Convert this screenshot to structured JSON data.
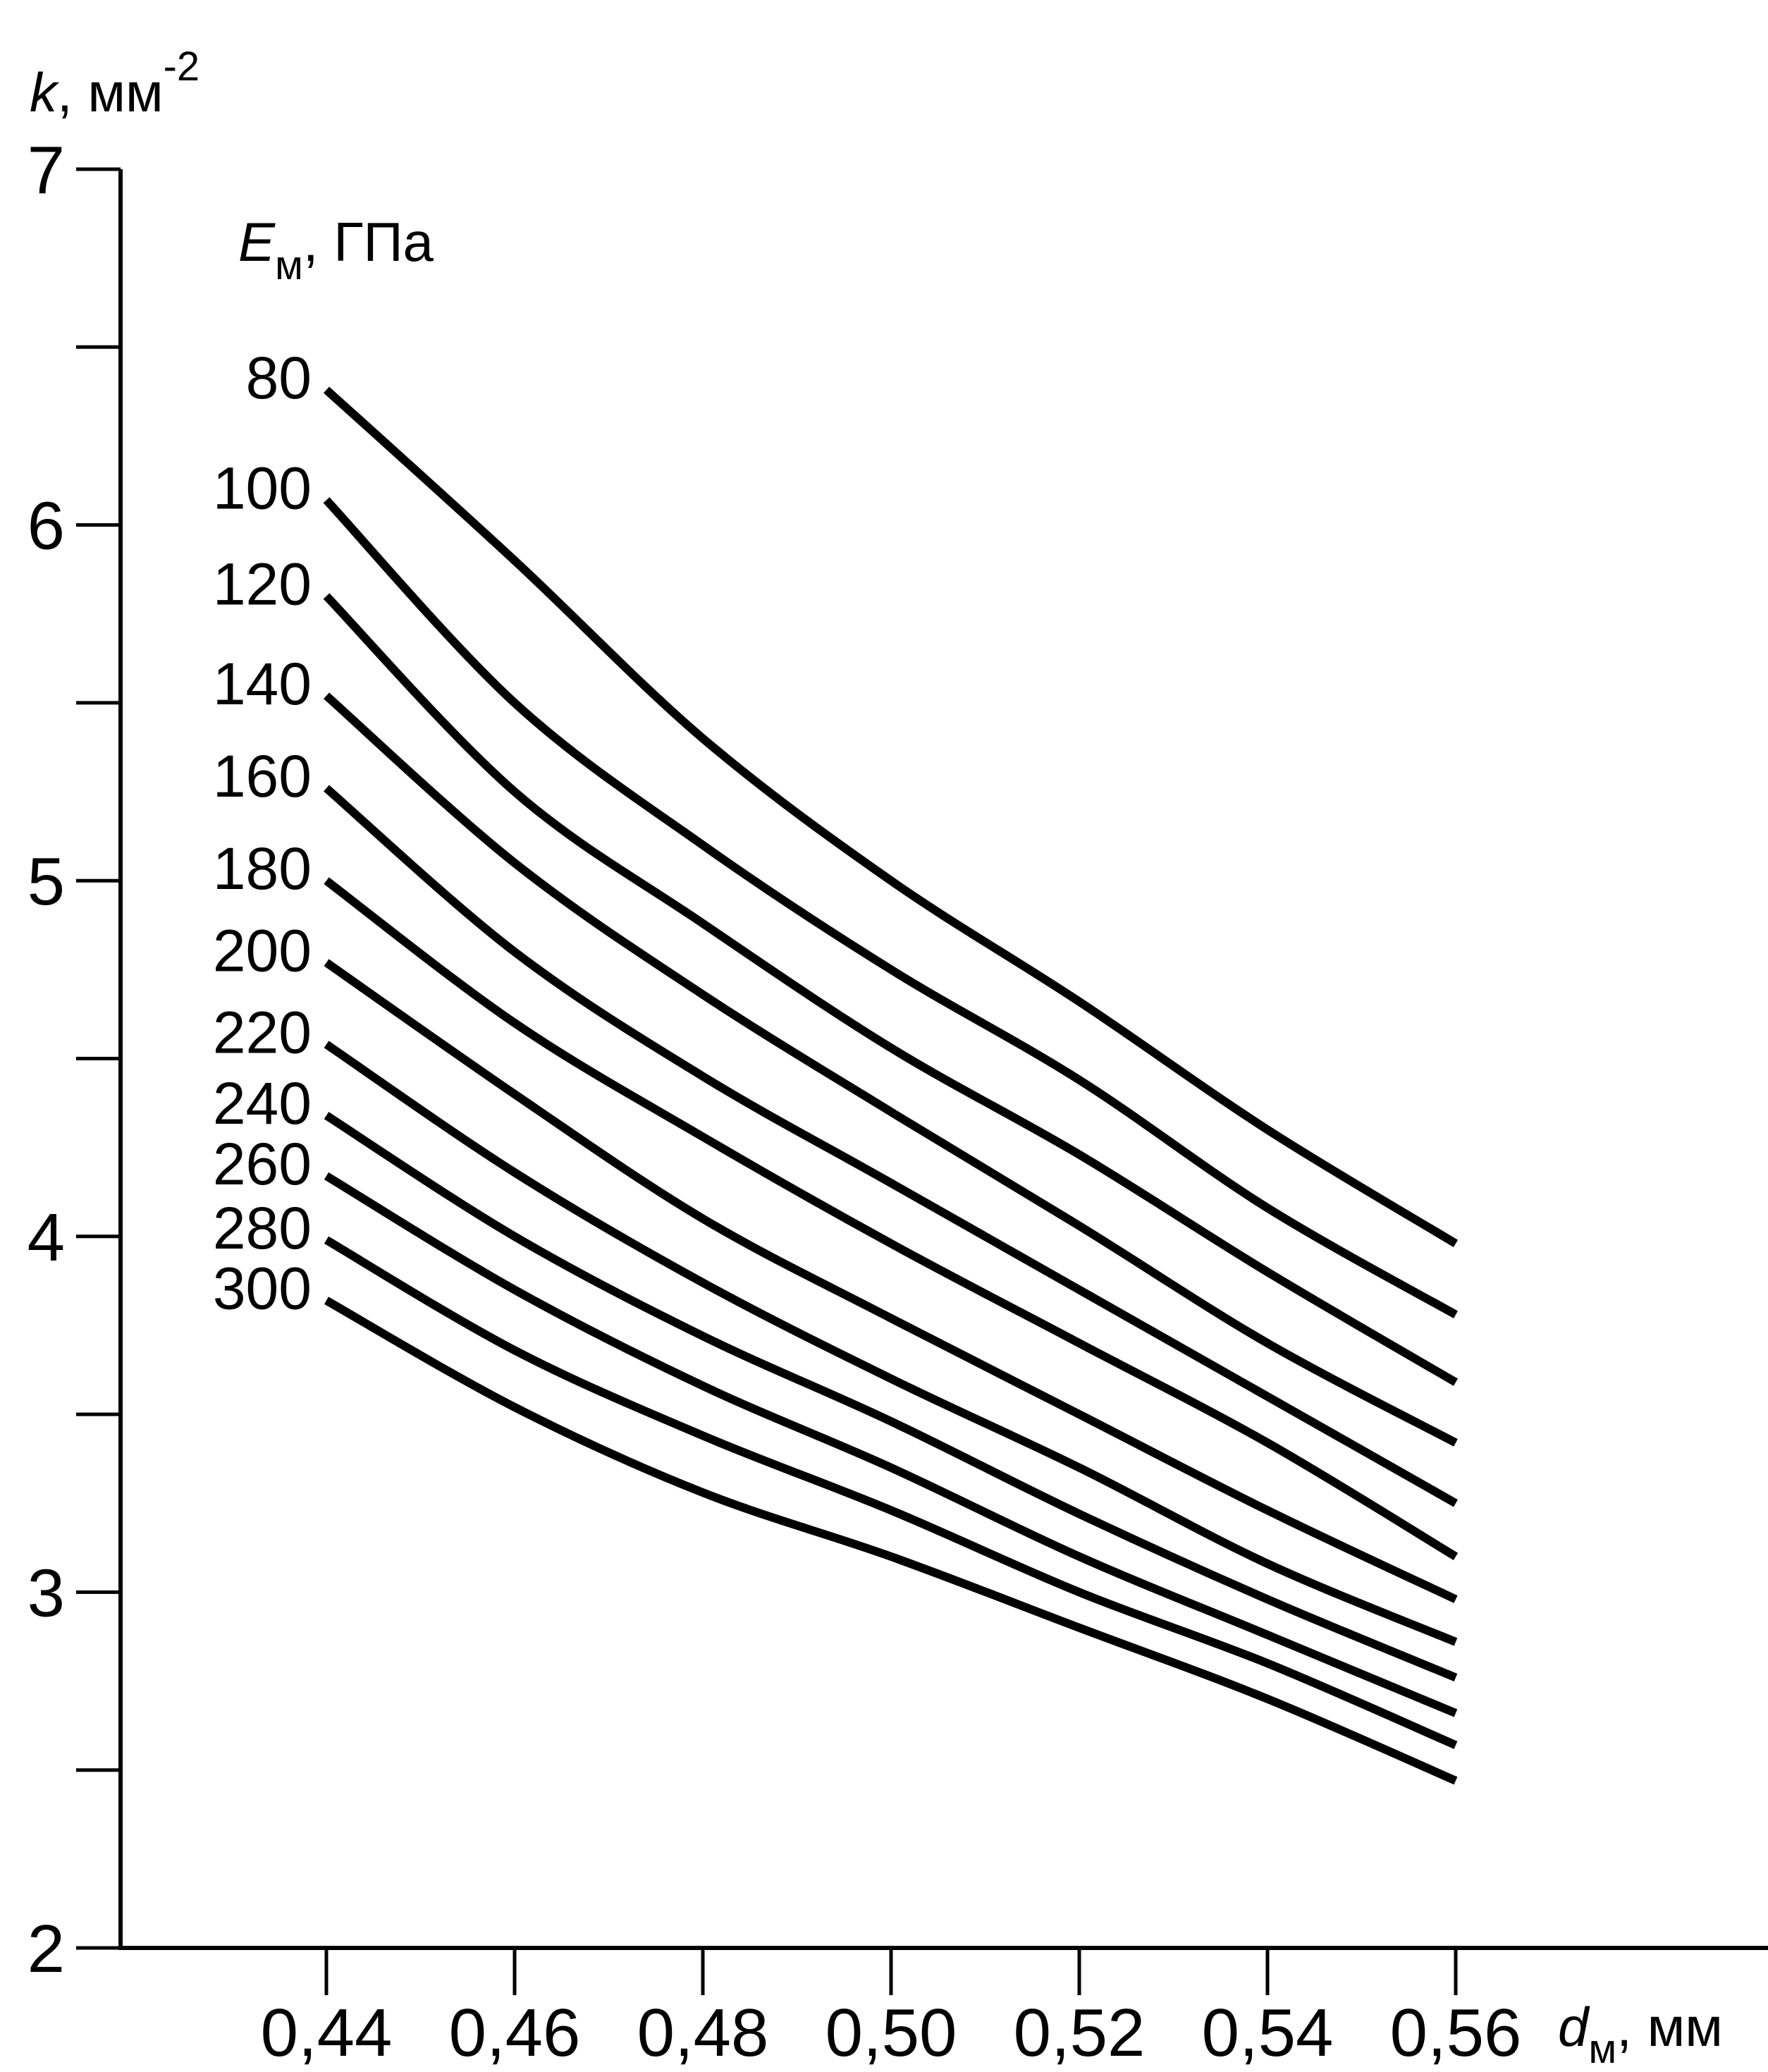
{
  "chart_data": {
    "type": "line",
    "ylabel": {
      "symbol": "k",
      "sep": ", ",
      "unit": "мм",
      "exp": "-2"
    },
    "xlabel": {
      "symbol": "d",
      "sub": "м",
      "sep": ", ",
      "unit": "мм"
    },
    "legend_title": {
      "symbol": "E",
      "sub": "м",
      "sep": ", ",
      "unit": "ГПа"
    },
    "xlim": [
      0.44,
      0.56
    ],
    "ylim": [
      2,
      7
    ],
    "x_ticks": [
      {
        "value": 0.44,
        "label": "0,44"
      },
      {
        "value": 0.46,
        "label": "0,46"
      },
      {
        "value": 0.48,
        "label": "0,48"
      },
      {
        "value": 0.5,
        "label": "0,50"
      },
      {
        "value": 0.52,
        "label": "0,52"
      },
      {
        "value": 0.54,
        "label": "0,54"
      },
      {
        "value": 0.56,
        "label": "0,56"
      }
    ],
    "y_ticks": [
      {
        "value": 2,
        "label": "2"
      },
      {
        "value": 2.5,
        "label": ""
      },
      {
        "value": 3,
        "label": "3"
      },
      {
        "value": 3.5,
        "label": ""
      },
      {
        "value": 4,
        "label": "4"
      },
      {
        "value": 4.5,
        "label": ""
      },
      {
        "value": 5,
        "label": "5"
      },
      {
        "value": 5.5,
        "label": ""
      },
      {
        "value": 6,
        "label": "6"
      },
      {
        "value": 6.5,
        "label": ""
      },
      {
        "value": 7,
        "label": "7"
      }
    ],
    "grid": false,
    "x": [
      0.44,
      0.46,
      0.48,
      0.5,
      0.52,
      0.54,
      0.56
    ],
    "series": [
      {
        "name": "80",
        "values": [
          6.38,
          5.9,
          5.4,
          5.0,
          4.66,
          4.3,
          3.98
        ]
      },
      {
        "name": "100",
        "values": [
          6.07,
          5.5,
          5.1,
          4.75,
          4.44,
          4.08,
          3.78
        ]
      },
      {
        "name": "120",
        "values": [
          5.8,
          5.25,
          4.88,
          4.53,
          4.23,
          3.9,
          3.59
        ]
      },
      {
        "name": "140",
        "values": [
          5.52,
          5.05,
          4.68,
          4.35,
          4.03,
          3.7,
          3.42
        ]
      },
      {
        "name": "160",
        "values": [
          5.26,
          4.8,
          4.45,
          4.15,
          3.85,
          3.55,
          3.25
        ]
      },
      {
        "name": "180",
        "values": [
          5.0,
          4.6,
          4.28,
          3.98,
          3.7,
          3.42,
          3.1
        ]
      },
      {
        "name": "200",
        "values": [
          4.77,
          4.4,
          4.05,
          3.77,
          3.5,
          3.23,
          2.98
        ]
      },
      {
        "name": "220",
        "values": [
          4.54,
          4.18,
          3.87,
          3.6,
          3.35,
          3.08,
          2.86
        ]
      },
      {
        "name": "240",
        "values": [
          4.34,
          4.0,
          3.72,
          3.48,
          3.22,
          2.98,
          2.76
        ]
      },
      {
        "name": "260",
        "values": [
          4.17,
          3.85,
          3.58,
          3.35,
          3.1,
          2.88,
          2.66
        ]
      },
      {
        "name": "280",
        "values": [
          3.99,
          3.68,
          3.44,
          3.23,
          3.0,
          2.8,
          2.57
        ]
      },
      {
        "name": "300",
        "values": [
          3.82,
          3.52,
          3.28,
          3.1,
          2.9,
          2.7,
          2.47
        ]
      }
    ]
  }
}
